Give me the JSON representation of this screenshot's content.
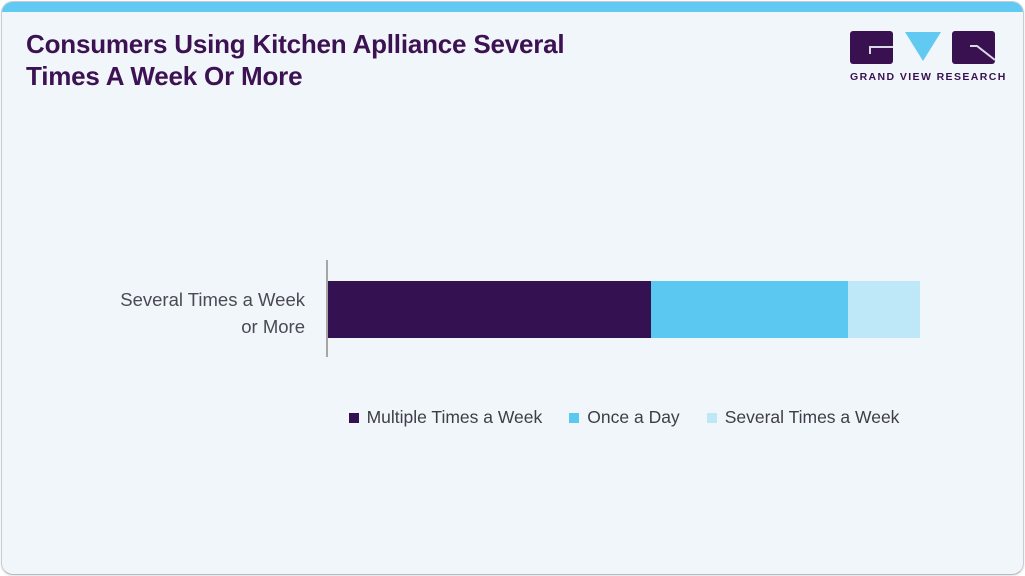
{
  "card": {
    "background_color": "#F1F6FA",
    "accent_bar_color": "#62C9F2",
    "border_color": "#C6CCD2"
  },
  "header": {
    "title_line1": "Consumers Using Kitchen Aplliance Several",
    "title_line2": "Times A Week Or More",
    "title_color": "#3D1253"
  },
  "logo": {
    "text": "GRAND VIEW RESEARCH",
    "mark_purple": "#3A1150",
    "mark_blue": "#62C9F2",
    "glyph_line_color": "#D9D9E3"
  },
  "chart_data": {
    "type": "bar",
    "orientation": "horizontal",
    "stacked": true,
    "title": "Consumers Using Kitchen Aplliance Several Times A Week Or More",
    "categories": [
      "Several Times a Week or More"
    ],
    "series": [
      {
        "name": "Multiple Times a Week",
        "values": [
          54
        ],
        "color": "#341150"
      },
      {
        "name": "Once a Day",
        "values": [
          33
        ],
        "color": "#5BC8F2"
      },
      {
        "name": "Several Times a Week",
        "values": [
          12
        ],
        "color": "#BEE8F8"
      }
    ],
    "unit": "%",
    "xlabel": "",
    "ylabel": "",
    "xlim": [
      0,
      99
    ],
    "grid": false,
    "data_labels": false,
    "legend_position": "bottom",
    "axis_line_color": "#A6A6A6"
  },
  "category_label": {
    "line1": "Several Times a Week",
    "line2": "or More"
  }
}
